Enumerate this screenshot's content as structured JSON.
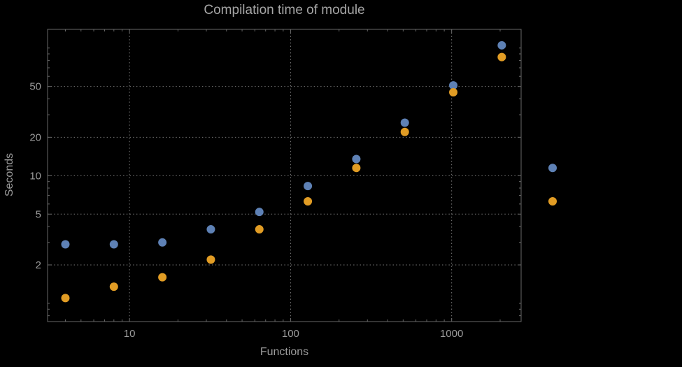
{
  "title": "Compilation time of module",
  "axes": {
    "xlabel": "Functions",
    "ylabel": "Seconds"
  },
  "chart_data": {
    "type": "scatter",
    "title": "Compilation time of module",
    "xlabel": "Functions",
    "ylabel": "Seconds",
    "xscale": "log",
    "yscale": "log",
    "grid": true,
    "xlim": [
      3.1,
      2700
    ],
    "ylim": [
      0.72,
      140
    ],
    "x_ticks": [
      10,
      100,
      1000
    ],
    "y_ticks": [
      2,
      5,
      10,
      20,
      50
    ],
    "x": [
      4,
      8,
      16,
      32,
      64,
      128,
      256,
      512,
      1024,
      2048
    ],
    "series": [
      {
        "name": "blue",
        "color": "#5e81b5",
        "values": [
          2.9,
          2.9,
          3.0,
          3.8,
          5.2,
          8.3,
          13.5,
          26,
          51,
          105
        ]
      },
      {
        "name": "orange",
        "color": "#e19c24",
        "values": [
          1.1,
          1.35,
          1.6,
          2.2,
          3.8,
          6.3,
          11.5,
          22,
          45,
          85
        ]
      }
    ],
    "legend_markers": [
      {
        "series": "blue",
        "color": "#5e81b5",
        "y_value": 11.5
      },
      {
        "series": "orange",
        "color": "#e19c24",
        "y_value": 6.3
      }
    ],
    "colors": {
      "background": "#000000",
      "text": "#9c9c9c",
      "grid": "#7a7a7a",
      "frame": "#696969"
    }
  }
}
